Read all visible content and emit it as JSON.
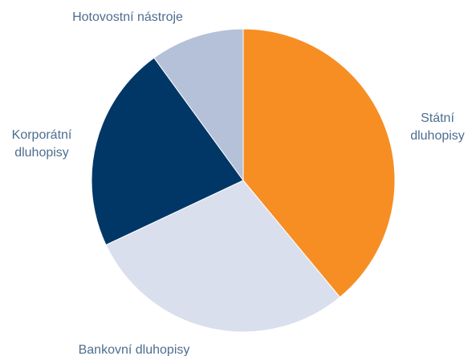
{
  "chart_data": {
    "type": "pie",
    "legend": "none",
    "slices": [
      {
        "label": [
          "Státní",
          "dluhopisy"
        ],
        "value": 39,
        "color": "#f68e24"
      },
      {
        "label": [
          "Bankovní dluhopisy"
        ],
        "value": 29,
        "color": "#d9dfec"
      },
      {
        "label": [
          "Korporátní",
          "dluhopisy"
        ],
        "value": 22,
        "color": "#003767"
      },
      {
        "label": [
          "Hotovostní nástroje"
        ],
        "value": 10,
        "color": "#b4c1d9"
      }
    ]
  }
}
